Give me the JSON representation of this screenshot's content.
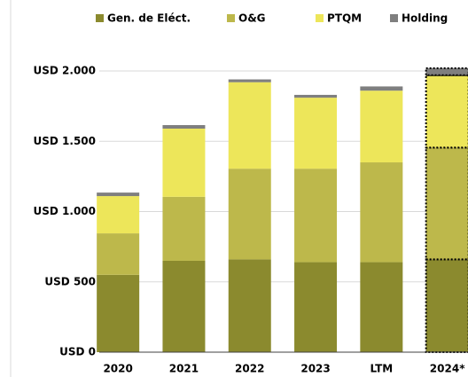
{
  "chart_data": {
    "type": "stacked_bar",
    "categories": [
      "2020",
      "2021",
      "2022",
      "2023",
      "LTM",
      "2024*"
    ],
    "series": [
      {
        "name": "Gen. de Eléct.",
        "color": "#8b8a2e",
        "values": [
          550,
          650,
          660,
          640,
          640,
          660
        ]
      },
      {
        "name": "O&G",
        "color": "#bdb84b",
        "values": [
          295,
          455,
          645,
          665,
          710,
          795
        ]
      },
      {
        "name": "PTQM",
        "color": "#ede65a",
        "values": [
          265,
          485,
          615,
          505,
          510,
          515
        ]
      },
      {
        "name": "Holding",
        "color": "#7f7f7f",
        "values": [
          25,
          25,
          20,
          20,
          30,
          50
        ]
      }
    ],
    "ylim": [
      0,
      2000
    ],
    "yticks": [
      {
        "value": 0,
        "label": "USD 0"
      },
      {
        "value": 500,
        "label": "USD 500"
      },
      {
        "value": 1000,
        "label": "USD 1.000"
      },
      {
        "value": 1500,
        "label": "USD 1.500"
      },
      {
        "value": 2000,
        "label": "USD 2.000"
      }
    ],
    "grid": true
  }
}
